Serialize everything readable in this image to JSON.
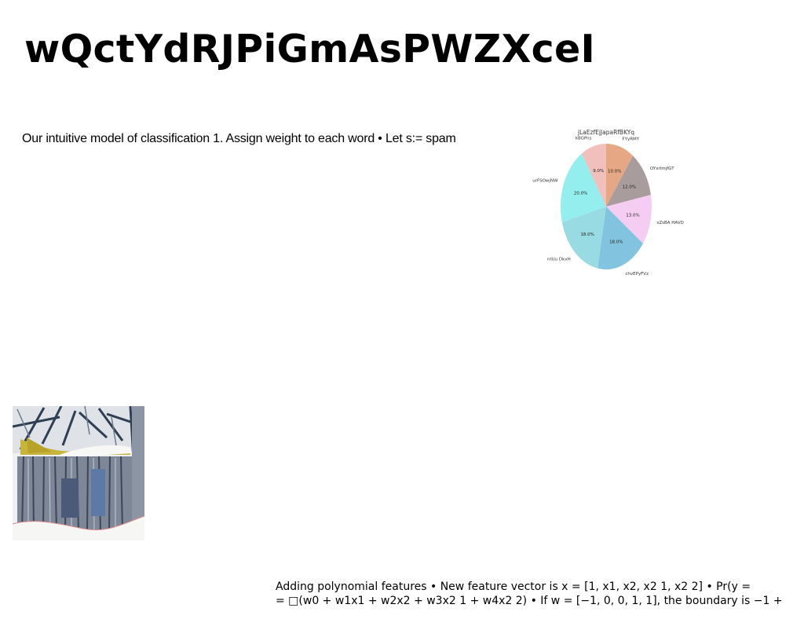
{
  "slide": {
    "title": "wQctYdRJPiGmAsPWZXceI",
    "paragraph_top": "Our intuitive model of classification 1. Assign weight to each word • Let s:= spam",
    "paragraph_bottom_line1": "Adding polynomial features • New feature vector is x = [1, x1, x2, x2 1, x2 2] • Pr(y =",
    "paragraph_bottom_line2": "= □(w0 + w1x1 + w2x2 + w3x2 1 + w4x2 2) • If w = [−1, 0, 0, 1, 1], the boundary is −1 +"
  },
  "chart_data": {
    "type": "pie",
    "title": "jLaEzfEjJapaRfBKYq",
    "start_angle_deg": 90,
    "direction": "clockwise",
    "slices": [
      {
        "label": "FYyRMY",
        "value": 10.0,
        "pct_label": "10.0%",
        "color": "#e6a884"
      },
      {
        "label": "OYxrImjfGT",
        "value": 12.0,
        "pct_label": "12.0%",
        "color": "#a89c9c"
      },
      {
        "label": "sZsBA HAVD",
        "value": 13.0,
        "pct_label": "13.0%",
        "color": "#f5cdf2"
      },
      {
        "label": "chvEPyFVz",
        "value": 18.0,
        "pct_label": "18.0%",
        "color": "#82c3df"
      },
      {
        "label": "ntUu DkxH",
        "value": 18.0,
        "pct_label": "18.0%",
        "color": "#98dbe2"
      },
      {
        "label": "urFSOwjNW",
        "value": 20.0,
        "pct_label": "20.0%",
        "color": "#94eeee"
      },
      {
        "label": "kBGPns",
        "value": 9.0,
        "pct_label": "9.0%",
        "color": "#f2c0bc"
      }
    ]
  },
  "image": {
    "alt": "painting of a snow-covered weathered wooden shack with a yellow roof"
  }
}
